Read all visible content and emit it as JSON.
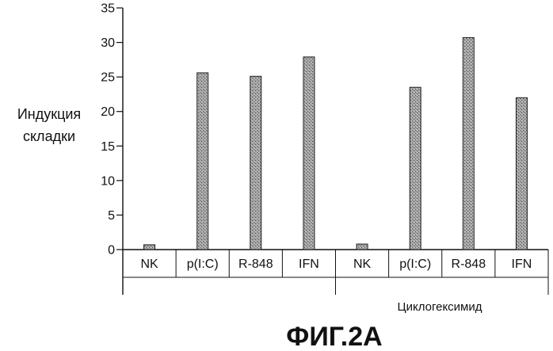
{
  "chart_data": {
    "type": "bar",
    "categories": [
      "NK",
      "p(I:C)",
      "R-848",
      "IFN",
      "NK",
      "p(I:C)",
      "R-848",
      "IFN"
    ],
    "values": [
      0.7,
      25.6,
      25.1,
      27.9,
      0.8,
      23.5,
      30.7,
      22.0
    ],
    "ylabel_lines": [
      "Индукция",
      "складки"
    ],
    "yticks": [
      0,
      5,
      10,
      15,
      20,
      25,
      30,
      35
    ],
    "ylim": [
      0,
      35
    ],
    "group_label": "Циклогексимид",
    "grid": false,
    "bar_color": "#9a9a9a"
  },
  "caption": "ФИГ.2А"
}
